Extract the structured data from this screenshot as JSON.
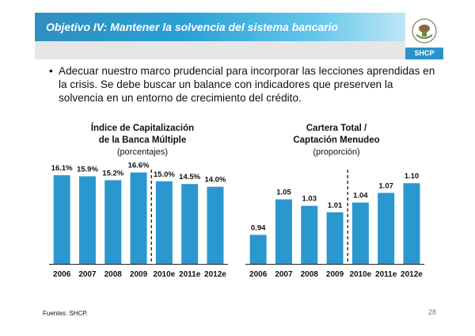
{
  "header": {
    "title": "Objetivo IV: Mantener la solvencia del sistema bancario",
    "logo_label": "SHCP"
  },
  "bullet": {
    "marker": "•",
    "text": "Adecuar nuestro marco prudencial para incorporar las lecciones aprendidas en la crisis. Se debe buscar un balance con indicadores que preserven la solvencia en un entorno de crecimiento del crédito."
  },
  "colors": {
    "bar": "#2b97cf",
    "axis": "#222222",
    "divider": "#000000",
    "header_start": "#2f8fbf",
    "header_end": "#bfe6f6"
  },
  "chart_data": [
    {
      "type": "bar",
      "title_line1": "Índice de Capitalización",
      "title_line2": "de la Banca Múltiple",
      "subtitle": "(porcentajes)",
      "categories": [
        "2006",
        "2007",
        "2008",
        "2009",
        "2010e",
        "2011e",
        "2012e"
      ],
      "values": [
        16.1,
        15.9,
        15.2,
        16.6,
        15.0,
        14.5,
        14.0
      ],
      "labels": [
        "16.1%",
        "15.9%",
        "15.2%",
        "16.6%",
        "15.0%",
        "14.5%",
        "14.0%"
      ],
      "ylim": [
        0,
        20
      ],
      "divider_after_index": 3
    },
    {
      "type": "bar",
      "title_line1": "Cartera Total /",
      "title_line2": "Captación Menudeo",
      "subtitle": "(proporción)",
      "categories": [
        "2006",
        "2007",
        "2008",
        "2009",
        "2010e",
        "2011e",
        "2012e"
      ],
      "values": [
        0.94,
        1.05,
        1.03,
        1.01,
        1.04,
        1.07,
        1.1
      ],
      "labels": [
        "0.94",
        "1.05",
        "1.03",
        "1.01",
        "1.04",
        "1.07",
        "1.10"
      ],
      "ylim": [
        0.85,
        1.13
      ],
      "divider_after_index": 3
    }
  ],
  "footer": {
    "source": "Fuentes: SHCP.",
    "page": "28"
  }
}
